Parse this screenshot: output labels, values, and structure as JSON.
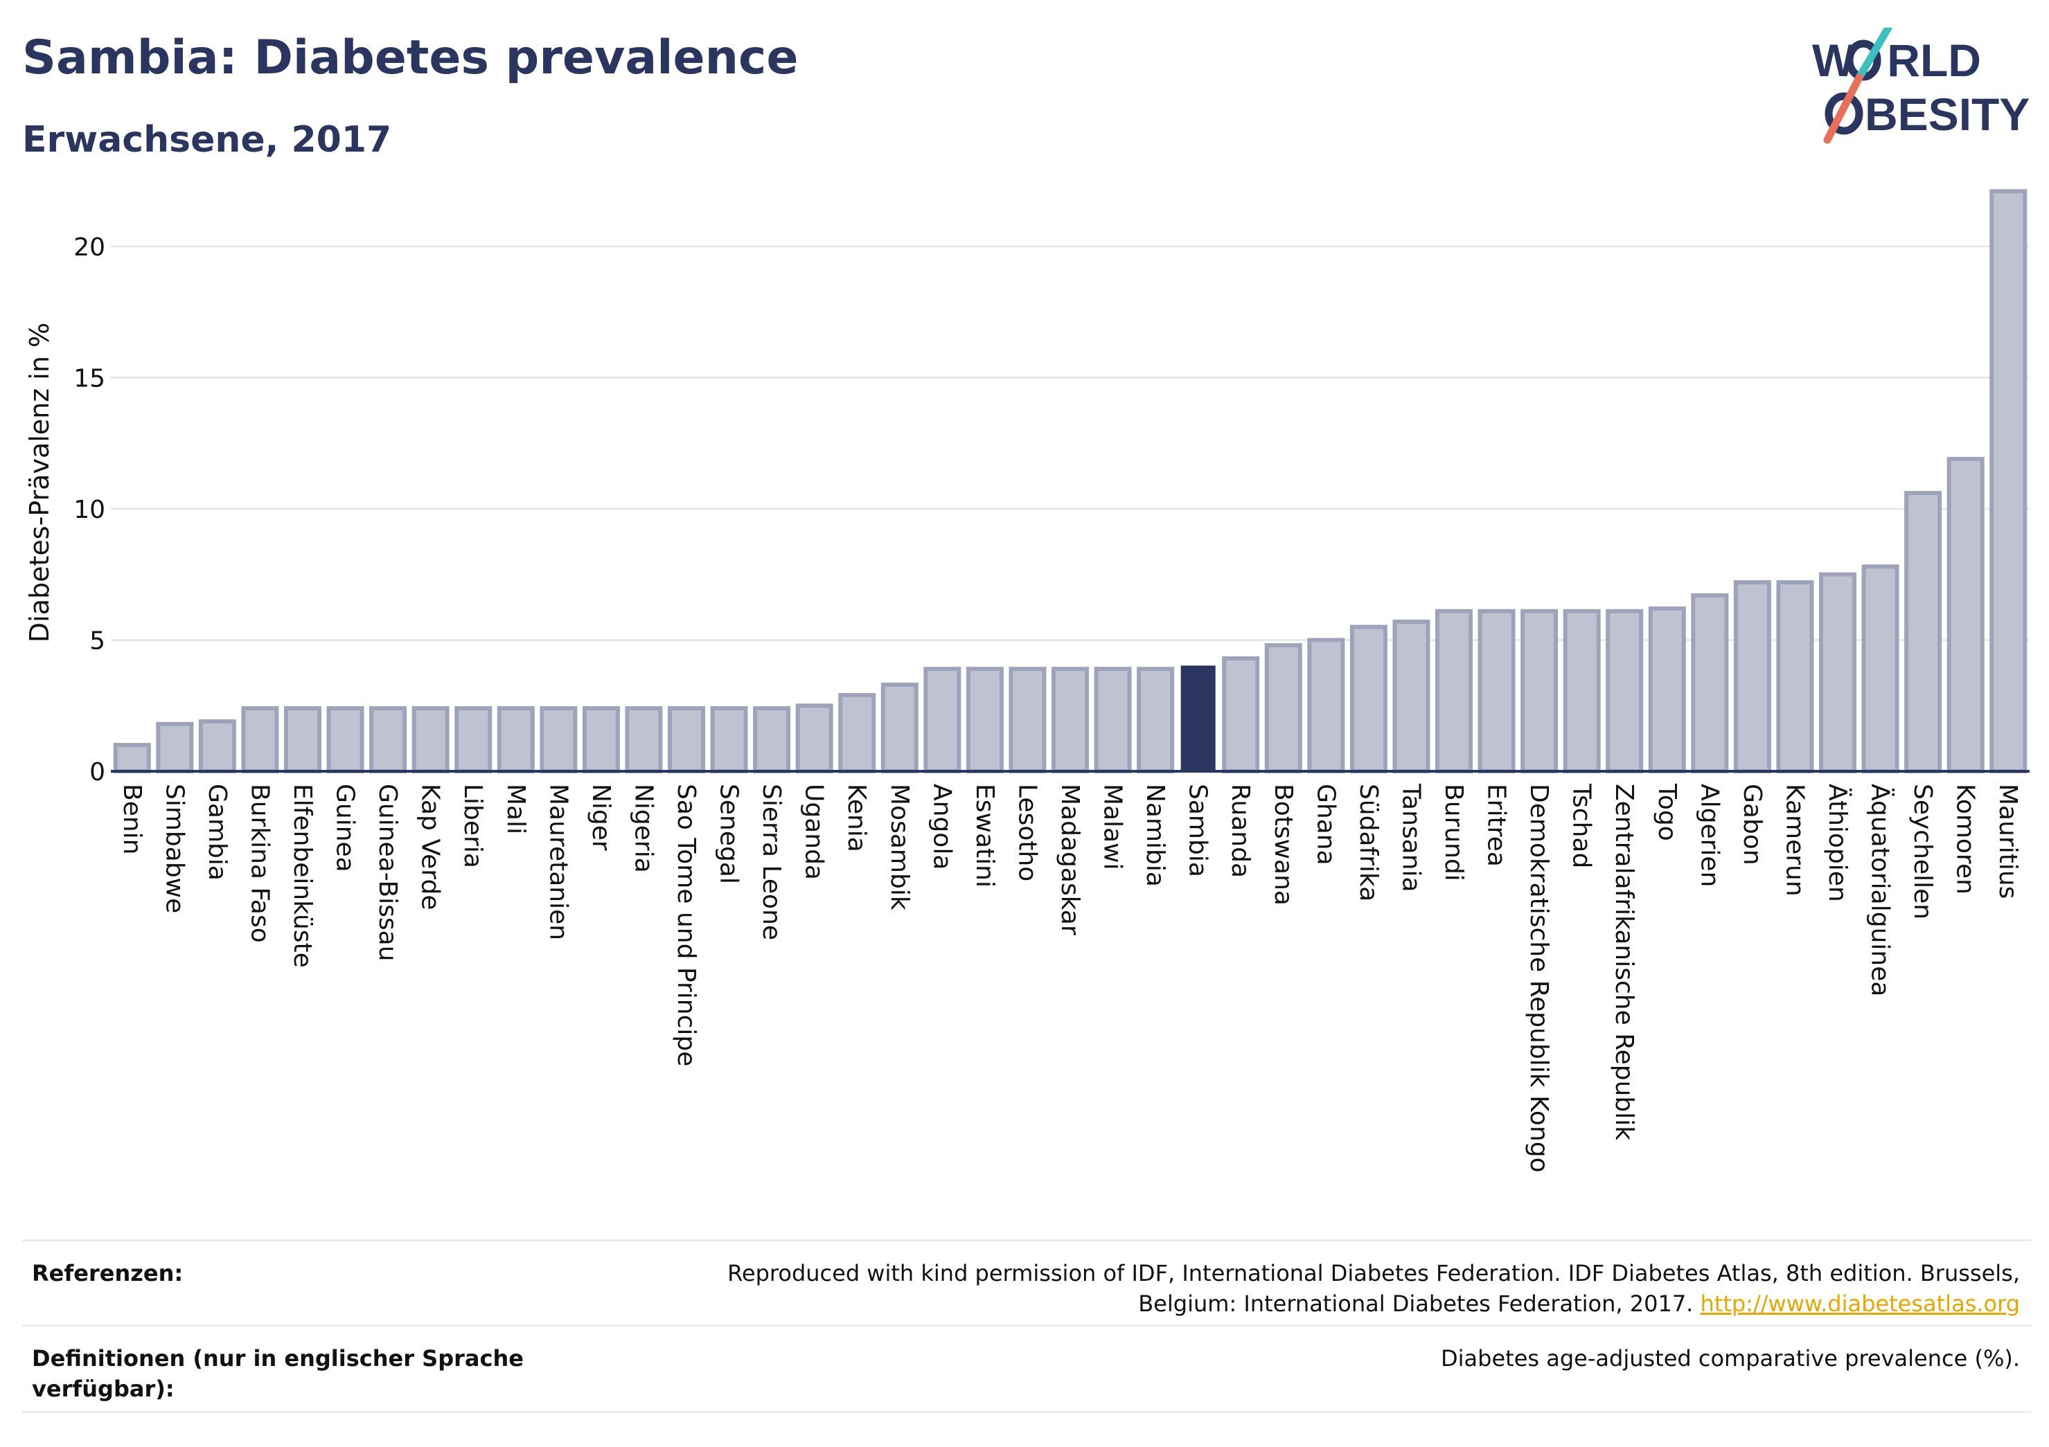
{
  "header": {
    "title": "Sambia: Diabetes prevalence",
    "subtitle": "Erwachsene, 2017"
  },
  "logo": {
    "line1_a": "W",
    "line1_b": "RLD",
    "line2_b": "BESITY",
    "colors": {
      "text": "#2a3560",
      "slash_teal": "#3bbfc1",
      "slash_coral": "#e8705a"
    }
  },
  "chart_data": {
    "type": "bar",
    "ylabel": "Diabetes-Prävalenz in %",
    "ylim": [
      0,
      22
    ],
    "yticks": [
      0,
      5,
      10,
      15,
      20
    ],
    "grid": true,
    "highlight": "Sambia",
    "colors": {
      "bar": "#bfc3d1",
      "bar_border": "#9ea3ba",
      "highlight": "#2a3560"
    },
    "categories": [
      "Benin",
      "Simbabwe",
      "Gambia",
      "Burkina Faso",
      "Elfenbeinküste",
      "Guinea",
      "Guinea-Bissau",
      "Kap Verde",
      "Liberia",
      "Mali",
      "Mauretanien",
      "Niger",
      "Nigeria",
      "Sao Tome und Principe",
      "Senegal",
      "Sierra Leone",
      "Uganda",
      "Kenia",
      "Mosambik",
      "Angola",
      "Eswatini",
      "Lesotho",
      "Madagaskar",
      "Malawi",
      "Namibia",
      "Sambia",
      "Ruanda",
      "Botswana",
      "Ghana",
      "Südafrika",
      "Tansania",
      "Burundi",
      "Eritrea",
      "Demokratische Republik Kongo",
      "Tschad",
      "Zentralafrikanische Republik",
      "Togo",
      "Algerien",
      "Gabon",
      "Kamerun",
      "Äthiopien",
      "Äquatorialguinea",
      "Seychellen",
      "Komoren",
      "Mauritius"
    ],
    "values": [
      1.0,
      1.8,
      1.9,
      2.4,
      2.4,
      2.4,
      2.4,
      2.4,
      2.4,
      2.4,
      2.4,
      2.4,
      2.4,
      2.4,
      2.4,
      2.4,
      2.5,
      2.9,
      3.3,
      3.9,
      3.9,
      3.9,
      3.9,
      3.9,
      3.9,
      4.0,
      4.3,
      4.8,
      5.0,
      5.5,
      5.7,
      6.1,
      6.1,
      6.1,
      6.1,
      6.1,
      6.2,
      6.7,
      7.2,
      7.2,
      7.5,
      7.8,
      10.6,
      11.9,
      22.1
    ]
  },
  "references": {
    "label": "Referenzen:",
    "text": "Reproduced with kind permission of IDF, International Diabetes Federation. IDF Diabetes Atlas, 8th edition. Brussels, Belgium: International Diabetes Federation, 2017.",
    "link": "http://www.diabetesatlas.org"
  },
  "definitions": {
    "label": "Definitionen (nur in englischer Sprache verfügbar):",
    "text": "Diabetes age-adjusted comparative prevalence (%)."
  }
}
